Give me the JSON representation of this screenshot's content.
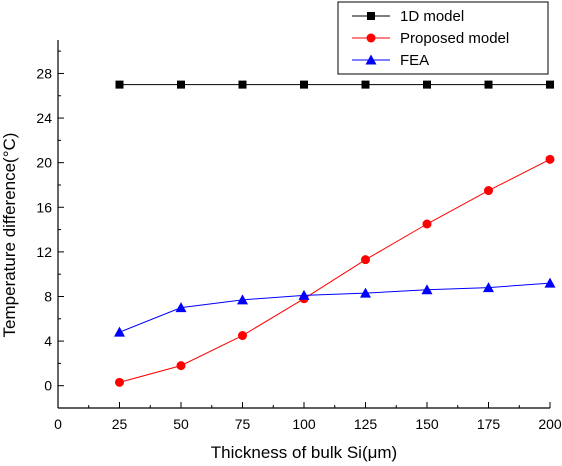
{
  "chart_data": {
    "type": "line",
    "xlabel": "Thickness of bulk Si(μm)",
    "ylabel": "Temperature difference(°C)",
    "xlim": [
      0,
      200
    ],
    "ylim": [
      -2,
      31
    ],
    "xticks": [
      0,
      25,
      50,
      75,
      100,
      125,
      150,
      175,
      200
    ],
    "xtick_labels": [
      "0",
      "25",
      "50",
      "75",
      "100",
      "125",
      "150",
      "175",
      "200"
    ],
    "yticks": [
      0,
      4,
      8,
      12,
      16,
      20,
      24,
      28
    ],
    "ytick_labels": [
      "0",
      "4",
      "8",
      "12",
      "16",
      "20",
      "24",
      "28"
    ],
    "grid": false,
    "legend_position": "top-right",
    "x": [
      25,
      50,
      75,
      100,
      125,
      150,
      175,
      200
    ],
    "series": [
      {
        "name": "1D model",
        "color": "#000000",
        "marker": "square",
        "values": [
          27,
          27,
          27,
          27,
          27,
          27,
          27,
          27
        ]
      },
      {
        "name": "Proposed model",
        "color": "#ff0000",
        "marker": "circle",
        "values": [
          0.3,
          1.8,
          4.5,
          7.8,
          11.3,
          14.5,
          17.5,
          20.3
        ]
      },
      {
        "name": "FEA",
        "color": "#0000ff",
        "marker": "triangle",
        "values": [
          4.8,
          7.0,
          7.7,
          8.1,
          8.3,
          8.6,
          8.8,
          9.2
        ]
      }
    ]
  }
}
